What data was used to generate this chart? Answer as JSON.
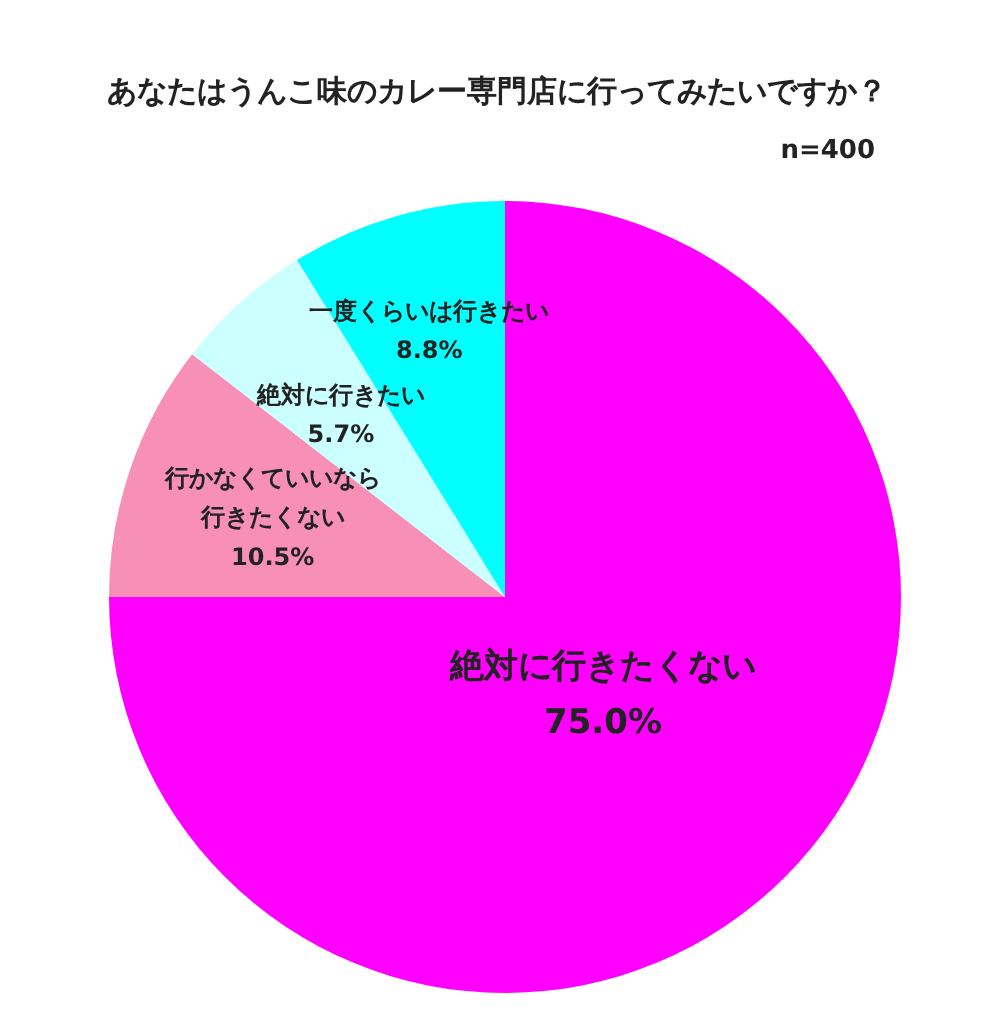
{
  "chart_data": {
    "type": "pie",
    "title": "あなたはうんこ味のカレー専門店に行ってみたいですか？",
    "annotations": [
      "n=400"
    ],
    "categories": [
      "絶対に行きたくない",
      "行かなくていいなら行きたくない",
      "絶対に行きたい",
      "一度くらいは行きたい"
    ],
    "values": [
      75.0,
      10.5,
      5.7,
      8.8
    ],
    "colors": [
      "#ff00ff",
      "#f78fb6",
      "#ccffff",
      "#00ffff"
    ],
    "value_labels": [
      "75.0%",
      "10.5%",
      "5.7%",
      "8.8%"
    ]
  }
}
